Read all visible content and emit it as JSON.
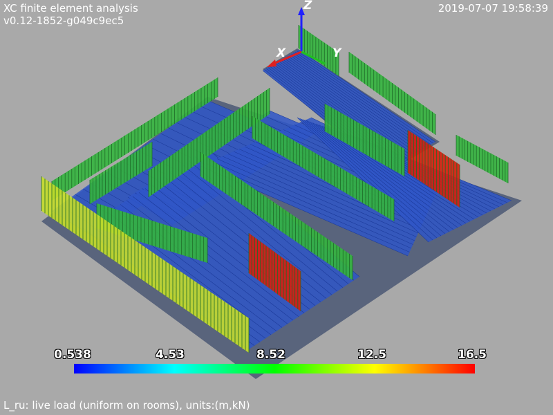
{
  "header": {
    "title": "XC finite element analysis",
    "version": "v0.12-1852-g049c9ec5",
    "timestamp": "2019-07-07 19:58:39"
  },
  "axes": {
    "x": "X",
    "y": "Y",
    "z": "Z"
  },
  "colorbar": {
    "labels": [
      "0.538",
      "4.53",
      "8.52",
      "12.5",
      "16.5"
    ],
    "min": 0.538,
    "max": 16.5,
    "colors": [
      "#0000ff",
      "#00ffff",
      "#00ff00",
      "#ffff00",
      "#ff0000"
    ]
  },
  "caption": "L_ru: live load (uniform on rooms), units:(m,kN)",
  "colors": {
    "background": "#a9a9a9",
    "slab": "#59647c",
    "mesh": "#2f56c8",
    "load_low": "#2a9a3a",
    "load_mid": "#b8d62c",
    "load_high": "#cc1a0a"
  }
}
